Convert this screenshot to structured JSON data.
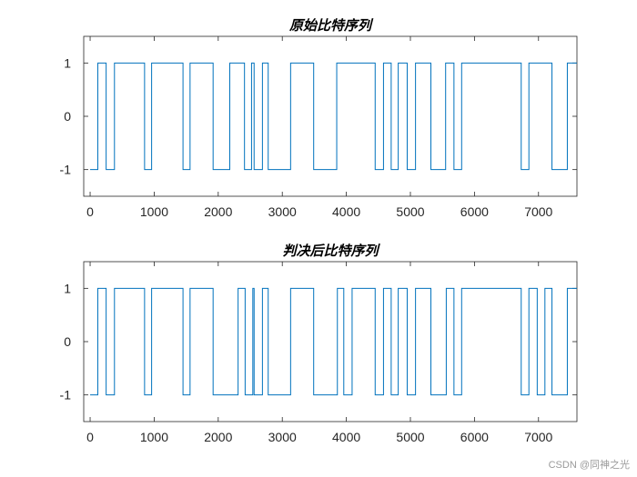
{
  "watermark": "CSDN @同神之光",
  "chart_data": [
    {
      "type": "line",
      "step": true,
      "title": "原始比特序列",
      "xlabel": "",
      "ylabel": "",
      "xlim": [
        -100,
        7600
      ],
      "ylim": [
        -1.5,
        1.5
      ],
      "xticks": [
        0,
        1000,
        2000,
        3000,
        4000,
        5000,
        6000,
        7000
      ],
      "yticks": [
        -1,
        0,
        1
      ],
      "color": "#0072BD",
      "grid": false,
      "series": [
        {
          "name": "",
          "transitions": [
            0,
            120,
            250,
            380,
            850,
            960,
            1450,
            1560,
            1920,
            2180,
            2410,
            2520,
            2560,
            2690,
            2780,
            3130,
            3490,
            3850,
            4450,
            4580,
            4700,
            4810,
            4950,
            5080,
            5320,
            5550,
            5680,
            5800,
            6730,
            6850,
            7210,
            7450,
            7600
          ],
          "levels": [
            -1,
            1,
            -1,
            1,
            -1,
            1,
            -1,
            1,
            -1,
            1,
            -1,
            1,
            -1,
            1,
            -1,
            1,
            -1,
            1,
            -1,
            1,
            -1,
            1,
            -1,
            1,
            -1,
            1,
            -1,
            1,
            -1,
            1,
            -1,
            1
          ]
        }
      ]
    },
    {
      "type": "line",
      "step": true,
      "title": "判决后比特序列",
      "xlabel": "",
      "ylabel": "",
      "xlim": [
        -100,
        7600
      ],
      "ylim": [
        -1.5,
        1.5
      ],
      "xticks": [
        0,
        1000,
        2000,
        3000,
        4000,
        5000,
        6000,
        7000
      ],
      "yticks": [
        -1,
        0,
        1
      ],
      "color": "#0072BD",
      "grid": false,
      "series": [
        {
          "name": "",
          "transitions": [
            0,
            120,
            250,
            380,
            850,
            960,
            1450,
            1560,
            1920,
            2310,
            2420,
            2540,
            2560,
            2690,
            2780,
            3130,
            3490,
            3860,
            3960,
            4090,
            4450,
            4580,
            4700,
            4810,
            4950,
            5080,
            5320,
            5560,
            5680,
            5800,
            6730,
            6850,
            6980,
            7100,
            7210,
            7450,
            7600
          ],
          "levels": [
            -1,
            1,
            -1,
            1,
            -1,
            1,
            -1,
            1,
            -1,
            1,
            -1,
            1,
            -1,
            1,
            -1,
            1,
            -1,
            1,
            -1,
            1,
            -1,
            1,
            -1,
            1,
            -1,
            1,
            -1,
            1,
            -1,
            1,
            -1,
            1,
            -1,
            1,
            -1,
            1
          ]
        }
      ]
    }
  ]
}
